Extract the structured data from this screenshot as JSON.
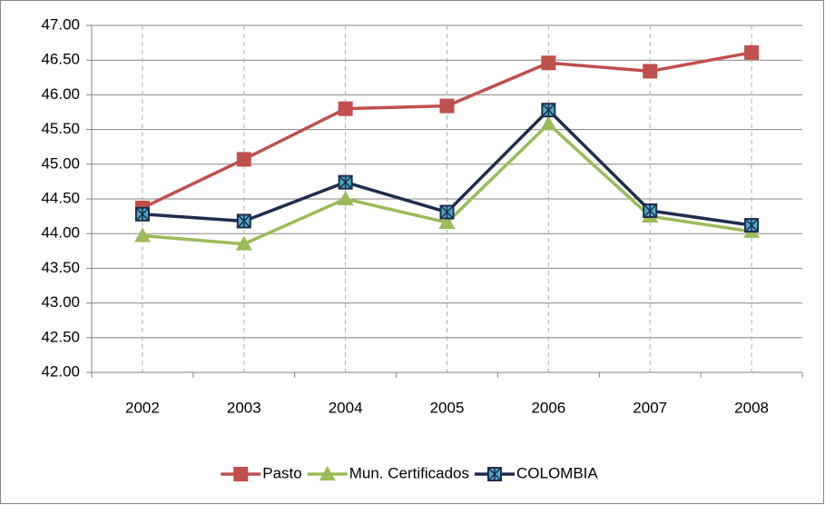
{
  "chart_data": {
    "type": "line",
    "categories": [
      "2002",
      "2003",
      "2004",
      "2005",
      "2006",
      "2007",
      "2008"
    ],
    "series": [
      {
        "name": "Pasto",
        "color": "#c0504d",
        "marker": "square",
        "values": [
          44.37,
          45.07,
          45.8,
          45.84,
          46.46,
          46.34,
          46.61
        ]
      },
      {
        "name": "Mun. Certificados",
        "color": "#9bbb59",
        "marker": "triangle",
        "values": [
          43.97,
          43.85,
          44.5,
          44.16,
          45.58,
          44.25,
          44.03
        ]
      },
      {
        "name": "COLOMBIA",
        "color": "#1f2d4e",
        "marker": "x-square",
        "values": [
          44.28,
          44.18,
          44.74,
          44.31,
          45.78,
          44.33,
          44.12
        ]
      }
    ],
    "ylim": [
      42,
      47
    ],
    "yticks": [
      {
        "value": 42,
        "label": "42.00"
      },
      {
        "value": 42.5,
        "label": "42.50"
      },
      {
        "value": 43,
        "label": "43.00"
      },
      {
        "value": 43.5,
        "label": "43.50"
      },
      {
        "value": 44,
        "label": "44.00"
      },
      {
        "value": 44.5,
        "label": "44.50"
      },
      {
        "value": 45,
        "label": "45.00"
      },
      {
        "value": 45.5,
        "label": "45.50"
      },
      {
        "value": 46,
        "label": "46.00"
      },
      {
        "value": 46.5,
        "label": "46.50"
      },
      {
        "value": 47,
        "label": "47.00"
      }
    ],
    "grid": true,
    "legend": "bottom"
  }
}
